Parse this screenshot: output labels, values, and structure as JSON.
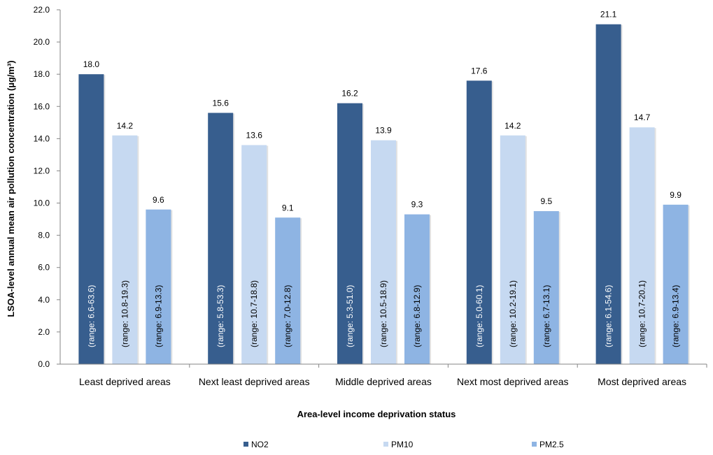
{
  "chart_data": {
    "type": "bar",
    "ylabel": "LSOA-level annual mean air pollution concentration (µg/m³)",
    "xlabel": "Area-level income deprivation status",
    "ylim": [
      0,
      22
    ],
    "y_ticks": [
      "0.0",
      "2.0",
      "4.0",
      "6.0",
      "8.0",
      "10.0",
      "12.0",
      "14.0",
      "16.0",
      "18.0",
      "20.0",
      "22.0"
    ],
    "categories": [
      "Least deprived areas",
      "Next least deprived areas",
      "Middle deprived areas",
      "Next most deprived areas",
      "Most deprived areas"
    ],
    "series": [
      {
        "name": "NO2",
        "color": "#375E8E",
        "label_color": "#ffffff",
        "values": [
          18.0,
          15.6,
          16.2,
          17.6,
          21.1
        ],
        "value_labels": [
          "18.0",
          "15.6",
          "16.2",
          "17.6",
          "21.1"
        ],
        "range_labels": [
          "(range: 6.6-63.6)",
          "(range: 5.8-53.3)",
          "(range: 5.3-51.0)",
          "(range: 5.0-60.1)",
          "(range: 6.1-54.6)"
        ]
      },
      {
        "name": "PM10",
        "color": "#C6D9F1",
        "label_color": "#000000",
        "values": [
          14.2,
          13.6,
          13.9,
          14.2,
          14.7
        ],
        "value_labels": [
          "14.2",
          "13.6",
          "13.9",
          "14.2",
          "14.7"
        ],
        "range_labels": [
          "(range: 10.8-19.3)",
          "(range: 10.7-18.8)",
          "(range: 10.5-18.9)",
          "(range: 10.2-19.1)",
          "(range: 10.7-20.1)"
        ]
      },
      {
        "name": "PM2.5",
        "color": "#8EB4E3",
        "label_color": "#000000",
        "values": [
          9.6,
          9.1,
          9.3,
          9.5,
          9.9
        ],
        "value_labels": [
          "9.6",
          "9.1",
          "9.3",
          "9.5",
          "9.9"
        ],
        "range_labels": [
          "(range: 6.9-13.3)",
          "(range: 7.0-12.8)",
          "(range: 6.8-12.9)",
          "(range: 6.7-13.1)",
          "(range: 6.9-13.4)"
        ]
      }
    ],
    "grid": false,
    "legend_position": "bottom"
  }
}
